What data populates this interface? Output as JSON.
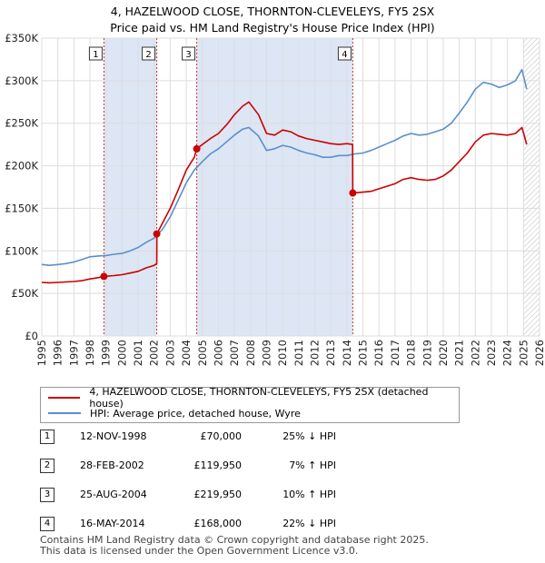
{
  "chart_data": {
    "type": "line",
    "title": "4, HAZELWOOD CLOSE, THORNTON-CLEVELEYS, FY5 2SX",
    "subtitle": "Price paid vs. HM Land Registry's House Price Index (HPI)",
    "xlim": [
      1995,
      2026
    ],
    "ylim": [
      0,
      350000
    ],
    "x_ticks": [
      "1995",
      "1996",
      "1997",
      "1998",
      "1999",
      "2000",
      "2001",
      "2002",
      "2003",
      "2004",
      "2005",
      "2006",
      "2007",
      "2008",
      "2009",
      "2010",
      "2011",
      "2012",
      "2013",
      "2014",
      "2015",
      "2016",
      "2017",
      "2018",
      "2019",
      "2020",
      "2021",
      "2022",
      "2023",
      "2024",
      "2025",
      "2026"
    ],
    "y_ticks": [
      {
        "value": 0,
        "label": "£0"
      },
      {
        "value": 50000,
        "label": "£50K"
      },
      {
        "value": 100000,
        "label": "£100K"
      },
      {
        "value": 150000,
        "label": "£150K"
      },
      {
        "value": 200000,
        "label": "£200K"
      },
      {
        "value": 250000,
        "label": "£250K"
      },
      {
        "value": 300000,
        "label": "£300K"
      },
      {
        "value": 350000,
        "label": "£350K"
      }
    ],
    "grid": true,
    "series": [
      {
        "name": "4, HAZELWOOD CLOSE, THORNTON-CLEVELEYS, FY5 2SX (detached house)",
        "color": "#cc0000",
        "points": [
          [
            1995.0,
            63000
          ],
          [
            1995.5,
            62500
          ],
          [
            1996.0,
            63000
          ],
          [
            1996.5,
            63500
          ],
          [
            1997.0,
            64000
          ],
          [
            1997.5,
            65000
          ],
          [
            1998.0,
            67000
          ],
          [
            1998.5,
            68500
          ],
          [
            1998.87,
            70000
          ],
          [
            1999.5,
            71000
          ],
          [
            2000.0,
            72000
          ],
          [
            2000.5,
            74000
          ],
          [
            2001.0,
            76000
          ],
          [
            2001.5,
            80000
          ],
          [
            2002.0,
            83000
          ],
          [
            2002.16,
            85000
          ],
          [
            2002.17,
            119950
          ],
          [
            2002.5,
            132000
          ],
          [
            2003.0,
            150000
          ],
          [
            2003.5,
            172000
          ],
          [
            2004.0,
            195000
          ],
          [
            2004.5,
            210000
          ],
          [
            2004.65,
            219950
          ],
          [
            2005.0,
            225000
          ],
          [
            2005.5,
            232000
          ],
          [
            2006.0,
            238000
          ],
          [
            2006.5,
            248000
          ],
          [
            2007.0,
            260000
          ],
          [
            2007.5,
            270000
          ],
          [
            2007.9,
            275000
          ],
          [
            2008.5,
            260000
          ],
          [
            2009.0,
            238000
          ],
          [
            2009.5,
            236000
          ],
          [
            2010.0,
            242000
          ],
          [
            2010.5,
            240000
          ],
          [
            2011.0,
            235000
          ],
          [
            2011.5,
            232000
          ],
          [
            2012.0,
            230000
          ],
          [
            2012.5,
            228000
          ],
          [
            2013.0,
            226000
          ],
          [
            2013.5,
            225000
          ],
          [
            2014.0,
            226000
          ],
          [
            2014.36,
            225000
          ],
          [
            2014.37,
            168000
          ],
          [
            2015.0,
            169000
          ],
          [
            2015.5,
            170000
          ],
          [
            2016.0,
            173000
          ],
          [
            2016.5,
            176000
          ],
          [
            2017.0,
            179000
          ],
          [
            2017.5,
            184000
          ],
          [
            2018.0,
            186000
          ],
          [
            2018.5,
            184000
          ],
          [
            2019.0,
            183000
          ],
          [
            2019.5,
            184000
          ],
          [
            2020.0,
            188000
          ],
          [
            2020.5,
            195000
          ],
          [
            2021.0,
            205000
          ],
          [
            2021.5,
            215000
          ],
          [
            2022.0,
            228000
          ],
          [
            2022.5,
            236000
          ],
          [
            2023.0,
            238000
          ],
          [
            2023.5,
            237000
          ],
          [
            2024.0,
            236000
          ],
          [
            2024.5,
            238000
          ],
          [
            2024.9,
            245000
          ],
          [
            2025.2,
            225000
          ]
        ]
      },
      {
        "name": "HPI: Average price, detached house, Wyre",
        "color": "#5b8fcc",
        "points": [
          [
            1995.0,
            84000
          ],
          [
            1995.5,
            83000
          ],
          [
            1996.0,
            84000
          ],
          [
            1996.5,
            85000
          ],
          [
            1997.0,
            87000
          ],
          [
            1997.5,
            90000
          ],
          [
            1998.0,
            93000
          ],
          [
            1998.5,
            94000
          ],
          [
            1999.0,
            94500
          ],
          [
            1999.5,
            96000
          ],
          [
            2000.0,
            97000
          ],
          [
            2000.5,
            100000
          ],
          [
            2001.0,
            104000
          ],
          [
            2001.5,
            110000
          ],
          [
            2002.0,
            115000
          ],
          [
            2002.5,
            125000
          ],
          [
            2003.0,
            140000
          ],
          [
            2003.5,
            160000
          ],
          [
            2004.0,
            180000
          ],
          [
            2004.5,
            195000
          ],
          [
            2005.0,
            205000
          ],
          [
            2005.5,
            214000
          ],
          [
            2006.0,
            220000
          ],
          [
            2006.5,
            228000
          ],
          [
            2007.0,
            236000
          ],
          [
            2007.5,
            243000
          ],
          [
            2007.9,
            245000
          ],
          [
            2008.5,
            235000
          ],
          [
            2009.0,
            218000
          ],
          [
            2009.5,
            220000
          ],
          [
            2010.0,
            224000
          ],
          [
            2010.5,
            222000
          ],
          [
            2011.0,
            218000
          ],
          [
            2011.5,
            215000
          ],
          [
            2012.0,
            213000
          ],
          [
            2012.5,
            210000
          ],
          [
            2013.0,
            210000
          ],
          [
            2013.5,
            212000
          ],
          [
            2014.0,
            212000
          ],
          [
            2014.5,
            214000
          ],
          [
            2015.0,
            215000
          ],
          [
            2015.5,
            218000
          ],
          [
            2016.0,
            222000
          ],
          [
            2016.5,
            226000
          ],
          [
            2017.0,
            230000
          ],
          [
            2017.5,
            235000
          ],
          [
            2018.0,
            238000
          ],
          [
            2018.5,
            236000
          ],
          [
            2019.0,
            237000
          ],
          [
            2019.5,
            240000
          ],
          [
            2020.0,
            243000
          ],
          [
            2020.5,
            250000
          ],
          [
            2021.0,
            262000
          ],
          [
            2021.5,
            275000
          ],
          [
            2022.0,
            290000
          ],
          [
            2022.5,
            298000
          ],
          [
            2023.0,
            296000
          ],
          [
            2023.5,
            292000
          ],
          [
            2024.0,
            295000
          ],
          [
            2024.5,
            300000
          ],
          [
            2024.9,
            313000
          ],
          [
            2025.2,
            290000
          ]
        ]
      }
    ],
    "sales": [
      {
        "num": "1",
        "x": 1998.87,
        "price_value": 70000,
        "date": "12-NOV-1998",
        "price": "£70,000",
        "hpi": "25% ↓ HPI"
      },
      {
        "num": "2",
        "x": 2002.16,
        "price_value": 119950,
        "date": "28-FEB-2002",
        "price": "£119,950",
        "hpi": "7% ↑ HPI"
      },
      {
        "num": "3",
        "x": 2004.65,
        "price_value": 219950,
        "date": "25-AUG-2004",
        "price": "£219,950",
        "hpi": "10% ↑ HPI"
      },
      {
        "num": "4",
        "x": 2014.37,
        "price_value": 168000,
        "date": "16-MAY-2014",
        "price": "£168,000",
        "hpi": "22% ↓ HPI"
      }
    ],
    "shaded_spans": [
      [
        1998.87,
        2002.16
      ],
      [
        2004.65,
        2014.37
      ]
    ],
    "future_start": 2025.0,
    "colors": {
      "price_line": "#cc0000",
      "hpi_line": "#5b8fcc",
      "shade": "#dde6f5",
      "grid": "#dddddd",
      "marker_vline": "#cc3333"
    }
  },
  "legend": {
    "property_label": "4, HAZELWOOD CLOSE, THORNTON-CLEVELEYS, FY5 2SX (detached house)",
    "hpi_label": "HPI: Average price, detached house, Wyre"
  },
  "footer": {
    "line1": "Contains HM Land Registry data © Crown copyright and database right 2025.",
    "line2": "This data is licensed under the Open Government Licence v3.0."
  }
}
